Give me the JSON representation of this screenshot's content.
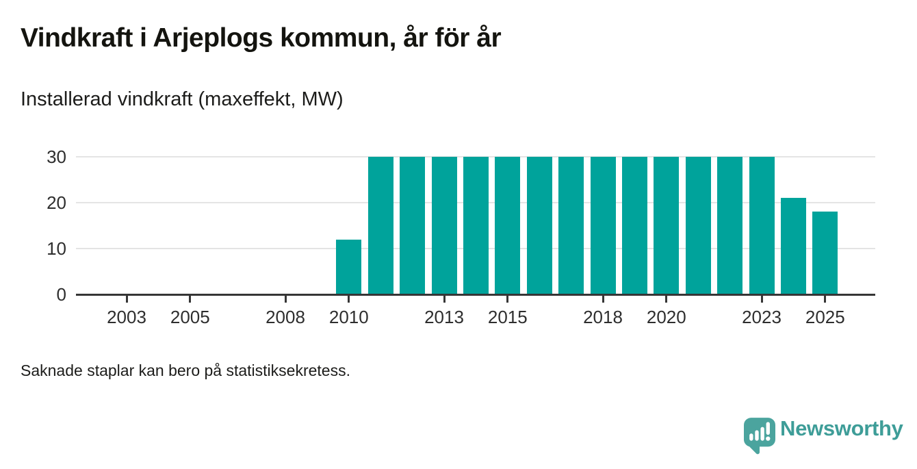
{
  "header": {
    "title": "Vindkraft i Arjeplogs kommun, år för år",
    "subtitle": "Installerad vindkraft (maxeffekt, MW)"
  },
  "footer": {
    "note": "Saknade staplar kan bero på statistiksekretess.",
    "logo_text": "Newsworthy"
  },
  "colors": {
    "bar": "#00a39b",
    "axis": "#363636",
    "grid": "#e4e4e4",
    "logo_icon": "#4ba49e",
    "logo_text": "#3e9d98"
  },
  "chart_data": {
    "type": "bar",
    "title": "Vindkraft i Arjeplogs kommun, år för år",
    "subtitle": "Installerad vindkraft (maxeffekt, MW)",
    "xlabel": "",
    "ylabel": "MW",
    "ylim": [
      0,
      30
    ],
    "grid": "horizontal",
    "legend": "none",
    "x": [
      2001,
      2002,
      2003,
      2004,
      2005,
      2006,
      2007,
      2008,
      2009,
      2010,
      2011,
      2012,
      2013,
      2014,
      2015,
      2016,
      2017,
      2018,
      2019,
      2020,
      2021,
      2022,
      2023,
      2024,
      2025
    ],
    "values": [
      null,
      null,
      null,
      null,
      null,
      null,
      null,
      null,
      null,
      12,
      30,
      30,
      30,
      30,
      30,
      30,
      30,
      30,
      30,
      30,
      30,
      30,
      30,
      21,
      18
    ],
    "x_tick_labels": [
      2003,
      2005,
      2008,
      2010,
      2013,
      2015,
      2018,
      2020,
      2023,
      2025
    ],
    "y_ticks": [
      0,
      10,
      20,
      30
    ]
  }
}
